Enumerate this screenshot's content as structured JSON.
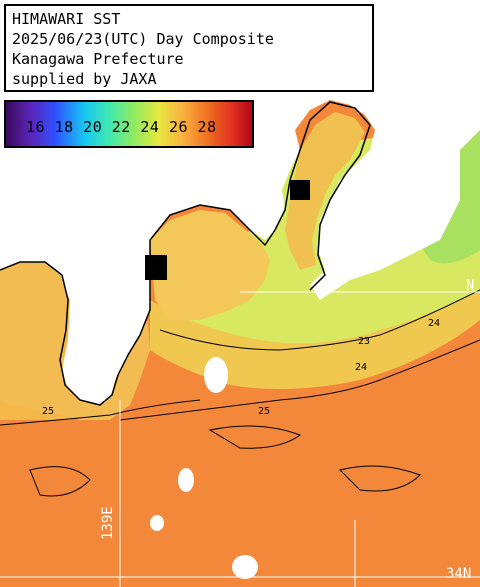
{
  "title": {
    "line1": "HIMAWARI SST",
    "line2": "2025/06/23(UTC) Day Composite",
    "line3": "Kanagawa Prefecture",
    "line4": "supplied by JAXA"
  },
  "legend": {
    "labels": "16 18 20 22 24 26 28",
    "colors": [
      "#3a0a5c",
      "#3050ff",
      "#18c8f0",
      "#90ea60",
      "#e8e840",
      "#f07020",
      "#b00818"
    ]
  },
  "grid": {
    "lon_label": "139E",
    "lat_label_right": "N",
    "lat_label_bottom": "34N"
  },
  "isotherms": {
    "label_23": "23",
    "label_24": "24",
    "label_25": "25"
  }
}
